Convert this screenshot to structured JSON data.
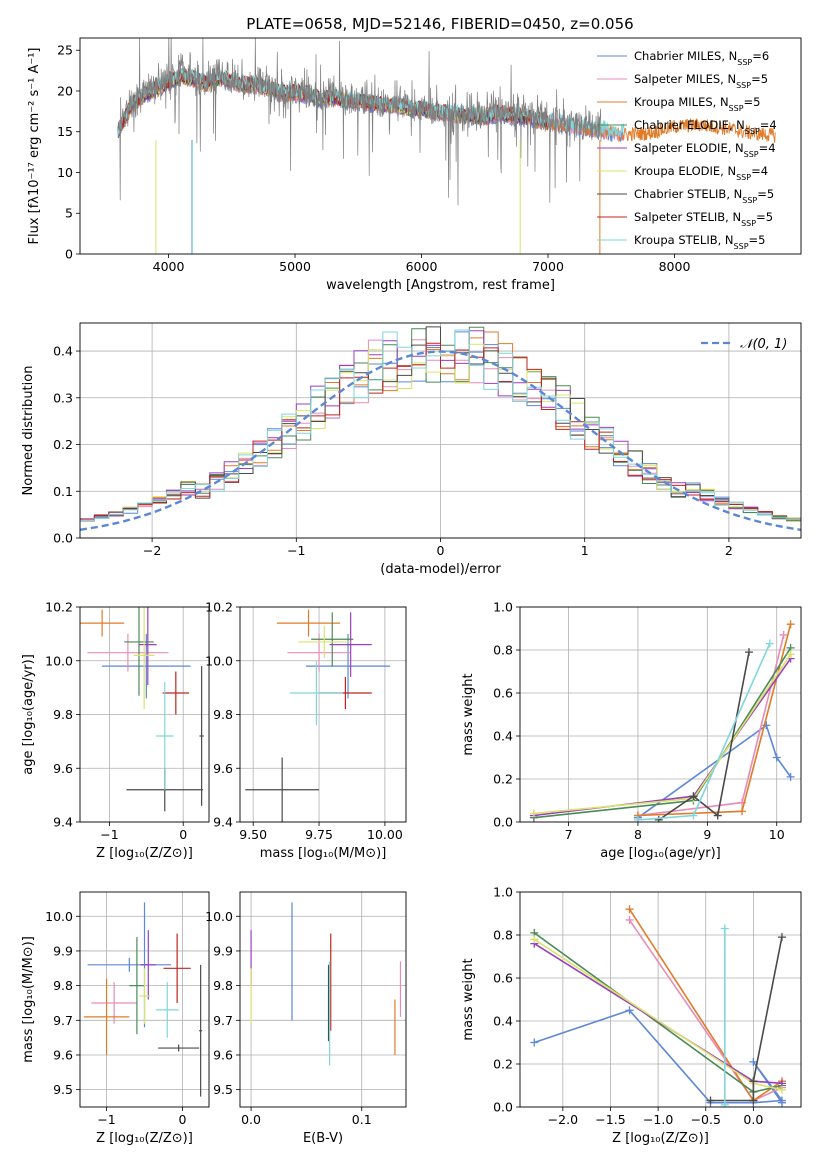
{
  "figure_title": "PLATE=0658, MJD=52146, FIBERID=0450, z=0.056",
  "colors": {
    "cmiles": "#5b87d6",
    "smiles": "#e88cb7",
    "kmiles": "#e07b28",
    "celodie": "#4a8a55",
    "selodie": "#9a3fbf",
    "kelodie": "#d9e36a",
    "cstelib": "#4a4a4a",
    "sstelib": "#c0241c",
    "kstelib": "#7fd6dc",
    "grid": "#b0b0b0",
    "normal_curve": "#5b87d6"
  },
  "chart_data": [
    {
      "type": "line",
      "title": "PLATE=0658, MJD=52146, FIBERID=0450, z=0.056",
      "xlabel": "wavelength [Angstrom, rest frame]",
      "ylabel": "Flux [fλ10⁻¹⁷ erg cm⁻² s⁻¹ A⁻¹]",
      "xlim": [
        3300,
        9000
      ],
      "ylim": [
        0,
        26.5
      ],
      "xticks": [
        4000,
        5000,
        6000,
        7000,
        8000
      ],
      "yticks": [
        0,
        5,
        10,
        15,
        20,
        25
      ],
      "grid": false,
      "legend_position": "top-right",
      "data_continuum": [
        [
          3600,
          15.5
        ],
        [
          3700,
          18.5
        ],
        [
          3800,
          20.0
        ],
        [
          3900,
          21.0
        ],
        [
          4000,
          21.5
        ],
        [
          4100,
          22.5
        ],
        [
          4200,
          22.0
        ],
        [
          4300,
          21.0
        ],
        [
          4400,
          22.0
        ],
        [
          4500,
          21.5
        ],
        [
          4600,
          21.0
        ],
        [
          4700,
          21.0
        ],
        [
          4800,
          20.5
        ],
        [
          4900,
          20.0
        ],
        [
          5000,
          20.0
        ],
        [
          5100,
          20.0
        ],
        [
          5200,
          19.3
        ],
        [
          5300,
          19.5
        ],
        [
          5400,
          19.0
        ],
        [
          5500,
          19.0
        ],
        [
          5600,
          18.8
        ],
        [
          5700,
          18.6
        ],
        [
          5800,
          18.5
        ],
        [
          5900,
          18.2
        ],
        [
          6000,
          18.0
        ],
        [
          6100,
          17.8
        ],
        [
          6200,
          17.6
        ],
        [
          6300,
          17.4
        ],
        [
          6400,
          17.5
        ],
        [
          6500,
          17.3
        ],
        [
          6600,
          17.5
        ],
        [
          6700,
          17.6
        ],
        [
          6800,
          17.4
        ],
        [
          6900,
          17.0
        ],
        [
          7000,
          16.6
        ],
        [
          7100,
          16.5
        ],
        [
          7200,
          16.0
        ],
        [
          7300,
          15.8
        ],
        [
          7400,
          15.3
        ]
      ],
      "model_continuum": [
        [
          3600,
          15.0
        ],
        [
          3700,
          18.0
        ],
        [
          3800,
          19.5
        ],
        [
          3900,
          20.2
        ],
        [
          4000,
          21.0
        ],
        [
          4100,
          21.8
        ],
        [
          4200,
          21.5
        ],
        [
          4300,
          20.8
        ],
        [
          4400,
          21.6
        ],
        [
          4500,
          21.2
        ],
        [
          4600,
          20.8
        ],
        [
          4700,
          20.7
        ],
        [
          4800,
          20.2
        ],
        [
          4900,
          19.8
        ],
        [
          5000,
          19.7
        ],
        [
          5100,
          19.6
        ],
        [
          5200,
          19.0
        ],
        [
          5300,
          19.2
        ],
        [
          5400,
          18.8
        ],
        [
          5500,
          18.7
        ],
        [
          5600,
          18.5
        ],
        [
          5700,
          18.3
        ],
        [
          5800,
          18.2
        ],
        [
          5900,
          17.9
        ],
        [
          6000,
          17.7
        ],
        [
          6100,
          17.5
        ],
        [
          6200,
          17.3
        ],
        [
          6300,
          17.1
        ],
        [
          6400,
          17.0
        ],
        [
          6500,
          16.8
        ],
        [
          6600,
          17.2
        ],
        [
          6700,
          17.0
        ],
        [
          6800,
          16.8
        ],
        [
          6900,
          16.5
        ],
        [
          7000,
          16.2
        ],
        [
          7100,
          16.0
        ],
        [
          7200,
          15.7
        ],
        [
          7300,
          15.5
        ],
        [
          7400,
          15.3
        ],
        [
          7500,
          15.0
        ],
        [
          7600,
          14.8
        ],
        [
          7800,
          15.0
        ],
        [
          8000,
          15.8
        ],
        [
          8200,
          16.0
        ],
        [
          8400,
          15.6
        ],
        [
          8600,
          15.0
        ],
        [
          8800,
          14.7
        ]
      ],
      "legend": [
        {
          "name": "Chabrier MILES, N",
          "sub": "SSP",
          "suffix": "=6",
          "color": "#5b87d6"
        },
        {
          "name": "Salpeter MILES, N",
          "sub": "SSP",
          "suffix": "=5",
          "color": "#e88cb7"
        },
        {
          "name": "Kroupa MILES, N",
          "sub": "SSP",
          "suffix": "=5",
          "color": "#e07b28"
        },
        {
          "name": "Chabrier ELODIE, N",
          "sub": "SSP",
          "suffix": "=4",
          "color": "#4a8a55"
        },
        {
          "name": "Salpeter ELODIE, N",
          "sub": "SSP",
          "suffix": "=4",
          "color": "#9a3fbf"
        },
        {
          "name": "Kroupa ELODIE, N",
          "sub": "SSP",
          "suffix": "=4",
          "color": "#d9e36a"
        },
        {
          "name": "Chabrier STELIB, N",
          "sub": "SSP",
          "suffix": "=5",
          "color": "#4a4a4a"
        },
        {
          "name": "Salpeter STELIB, N",
          "sub": "SSP",
          "suffix": "=5",
          "color": "#c0241c"
        },
        {
          "name": "Kroupa STELIB, N",
          "sub": "SSP",
          "suffix": "=5",
          "color": "#7fd6dc"
        }
      ]
    },
    {
      "type": "step",
      "xlabel": "(data-model)/error",
      "ylabel": "Normed distribution",
      "xlim": [
        -2.5,
        2.5
      ],
      "ylim": [
        0,
        0.46
      ],
      "xticks": [
        -2,
        -1,
        0,
        1,
        2
      ],
      "yticks": [
        0.0,
        0.1,
        0.2,
        0.3,
        0.4
      ],
      "grid": true,
      "legend_position": "top-right",
      "normal_label": "𝒩(0, 1)"
    },
    {
      "type": "scatter",
      "xlabel": "Z [log₁₀(Z/Z⊙)]",
      "ylabel": "age  [log₁₀(age/yr)]",
      "xlim": [
        -1.4,
        0.35
      ],
      "ylim": [
        9.4,
        10.2
      ],
      "xticks": [
        -1,
        0
      ],
      "yticks": [
        9.4,
        9.6,
        9.8,
        10.0,
        10.2
      ],
      "grid": true,
      "points": [
        {
          "x": -0.5,
          "xerr": 0.6,
          "y": 9.98,
          "yerr": 0.12,
          "color": "#5b87d6"
        },
        {
          "x": -0.75,
          "xerr": 0.55,
          "y": 10.03,
          "yerr": 0.07,
          "color": "#e88cb7"
        },
        {
          "x": -1.1,
          "xerr": 0.3,
          "y": 10.14,
          "yerr": 0.05,
          "color": "#e07b28"
        },
        {
          "x": -0.6,
          "xerr": 0.2,
          "y": 10.07,
          "yerr": 0.2,
          "color": "#4a8a55"
        },
        {
          "x": -0.48,
          "xerr": 0.12,
          "y": 10.06,
          "yerr": 0.15,
          "color": "#9a3fbf"
        },
        {
          "x": -0.53,
          "xerr": 0.14,
          "y": 10.02,
          "yerr": 0.2,
          "color": "#d9e36a"
        },
        {
          "x": -0.25,
          "xerr": 0.52,
          "y": 9.52,
          "yerr": 0.08,
          "color": "#4a4a4a"
        },
        {
          "x": 0.25,
          "xerr": 0.03,
          "y": 9.72,
          "yerr": 0.26,
          "color": "#4a4a4a"
        },
        {
          "x": -0.1,
          "xerr": 0.18,
          "y": 9.88,
          "yerr": 0.08,
          "color": "#c0241c"
        },
        {
          "x": -0.25,
          "xerr": 0.12,
          "y": 9.72,
          "yerr": 0.2,
          "color": "#7fd6dc"
        }
      ]
    },
    {
      "type": "scatter",
      "xlabel": "mass [log₁₀(M/M⊙)]",
      "ylabel": "",
      "xlim": [
        9.45,
        10.08
      ],
      "ylim": [
        9.4,
        10.2
      ],
      "xticks": [
        9.5,
        9.75,
        10.0
      ],
      "yticks": [
        9.4,
        9.6,
        9.8,
        10.0,
        10.2
      ],
      "grid": true,
      "points": [
        {
          "x": 9.86,
          "xerr": 0.16,
          "y": 9.98,
          "yerr": 0.12,
          "color": "#5b87d6"
        },
        {
          "x": 9.75,
          "xerr": 0.12,
          "y": 10.03,
          "yerr": 0.07,
          "color": "#e88cb7"
        },
        {
          "x": 9.71,
          "xerr": 0.12,
          "y": 10.14,
          "yerr": 0.05,
          "color": "#e07b28"
        },
        {
          "x": 9.8,
          "xerr": 0.08,
          "y": 10.08,
          "yerr": 0.1,
          "color": "#4a8a55"
        },
        {
          "x": 9.87,
          "xerr": 0.08,
          "y": 10.06,
          "yerr": 0.12,
          "color": "#9a3fbf"
        },
        {
          "x": 9.77,
          "xerr": 0.1,
          "y": 10.07,
          "yerr": 0.06,
          "color": "#d9e36a"
        },
        {
          "x": 9.61,
          "xerr": 0.14,
          "y": 9.52,
          "yerr": 0.12,
          "color": "#4a4a4a"
        },
        {
          "x": 9.85,
          "xerr": 0.1,
          "y": 9.88,
          "yerr": 0.06,
          "color": "#c0241c"
        },
        {
          "x": 9.74,
          "xerr": 0.1,
          "y": 9.88,
          "yerr": 0.12,
          "color": "#7fd6dc"
        }
      ]
    },
    {
      "type": "line",
      "xlabel": "age  [log₁₀(age/yr)]",
      "ylabel": "mass weight",
      "xlim": [
        6.3,
        10.35
      ],
      "ylim": [
        0,
        1.0
      ],
      "xticks": [
        7,
        8,
        9,
        10
      ],
      "yticks": [
        0.0,
        0.2,
        0.4,
        0.6,
        0.8,
        1.0
      ],
      "grid": true,
      "series": [
        {
          "color": "#5b87d6",
          "x": [
            8.0,
            9.85,
            10.0,
            10.2
          ],
          "y": [
            0.02,
            0.45,
            0.3,
            0.21
          ]
        },
        {
          "color": "#e88cb7",
          "x": [
            8.0,
            9.5,
            10.1
          ],
          "y": [
            0.03,
            0.09,
            0.87
          ]
        },
        {
          "color": "#e07b28",
          "x": [
            8.0,
            9.5,
            10.2
          ],
          "y": [
            0.03,
            0.05,
            0.92
          ]
        },
        {
          "color": "#4a8a55",
          "x": [
            6.5,
            8.8,
            10.2
          ],
          "y": [
            0.02,
            0.1,
            0.81
          ]
        },
        {
          "color": "#9a3fbf",
          "x": [
            6.5,
            8.8,
            10.2
          ],
          "y": [
            0.03,
            0.12,
            0.76
          ]
        },
        {
          "color": "#d9e36a",
          "x": [
            6.5,
            8.8,
            10.2
          ],
          "y": [
            0.04,
            0.11,
            0.78
          ]
        },
        {
          "color": "#4a4a4a",
          "x": [
            8.3,
            8.8,
            9.15,
            9.6
          ],
          "y": [
            0.01,
            0.12,
            0.03,
            0.79
          ]
        },
        {
          "color": "#7fd6dc",
          "x": [
            8.0,
            8.8,
            9.9
          ],
          "y": [
            0.01,
            0.03,
            0.83
          ]
        }
      ]
    },
    {
      "type": "scatter",
      "xlabel": "Z [log₁₀(Z/Z⊙)]",
      "ylabel": "mass [log₁₀(M/M⊙)]",
      "xlim": [
        -1.35,
        0.35
      ],
      "ylim": [
        9.45,
        10.07
      ],
      "xticks": [
        -1,
        0
      ],
      "yticks": [
        9.5,
        9.6,
        9.7,
        9.8,
        9.9,
        10.0
      ],
      "grid": true,
      "points": [
        {
          "x": -0.7,
          "xerr": 0.55,
          "y": 9.86,
          "yerr": 0.02,
          "color": "#5b87d6"
        },
        {
          "x": -0.5,
          "xerr": 0.05,
          "y": 9.86,
          "yerr": 0.18,
          "color": "#5b87d6"
        },
        {
          "x": -0.9,
          "xerr": 0.3,
          "y": 9.75,
          "yerr": 0.06,
          "color": "#e88cb7"
        },
        {
          "x": -1.0,
          "xerr": 0.3,
          "y": 9.71,
          "yerr": 0.11,
          "color": "#e07b28"
        },
        {
          "x": -0.6,
          "xerr": 0.1,
          "y": 9.8,
          "yerr": 0.14,
          "color": "#4a8a55"
        },
        {
          "x": -0.45,
          "xerr": 0.1,
          "y": 9.86,
          "yerr": 0.1,
          "color": "#9a3fbf"
        },
        {
          "x": -0.5,
          "xerr": 0.07,
          "y": 9.77,
          "yerr": 0.08,
          "color": "#d9e36a"
        },
        {
          "x": -0.05,
          "xerr": 0.27,
          "y": 9.62,
          "yerr": 0.01,
          "color": "#4a4a4a"
        },
        {
          "x": 0.24,
          "xerr": 0.02,
          "y": 9.67,
          "yerr": 0.19,
          "color": "#4a4a4a"
        },
        {
          "x": -0.07,
          "xerr": 0.18,
          "y": 9.85,
          "yerr": 0.1,
          "color": "#c0241c"
        },
        {
          "x": -0.2,
          "xerr": 0.15,
          "y": 9.73,
          "yerr": 0.08,
          "color": "#7fd6dc"
        }
      ]
    },
    {
      "type": "scatter",
      "xlabel": "E(B-V)",
      "ylabel": "",
      "xlim": [
        -0.01,
        0.14
      ],
      "ylim": [
        9.45,
        10.07
      ],
      "xticks": [
        0.0,
        0.1
      ],
      "yticks": [
        9.5,
        9.6,
        9.7,
        9.8,
        9.9,
        10.0
      ],
      "grid": true,
      "points": [
        {
          "x": 0.037,
          "y": 9.87,
          "yerr": 0.17,
          "color": "#5b87d6"
        },
        {
          "x": 0.0,
          "y": 9.88,
          "yerr": 0.08,
          "color": "#9a3fbf"
        },
        {
          "x": 0.0,
          "y": 9.77,
          "yerr": 0.08,
          "color": "#d9e36a"
        },
        {
          "x": 0.07,
          "y": 9.75,
          "yerr": 0.11,
          "color": "#4a4a4a"
        },
        {
          "x": 0.072,
          "y": 9.81,
          "yerr": 0.14,
          "color": "#c0241c"
        },
        {
          "x": 0.071,
          "y": 9.72,
          "yerr": 0.15,
          "color": "#7fd6dc"
        },
        {
          "x": 0.13,
          "y": 9.68,
          "yerr": 0.08,
          "color": "#e07b28"
        },
        {
          "x": 0.135,
          "y": 9.79,
          "yerr": 0.08,
          "color": "#e88cb7"
        }
      ]
    },
    {
      "type": "line",
      "xlabel": "Z [log₁₀(Z/Z⊙)]",
      "ylabel": "mass weight",
      "xlim": [
        -2.45,
        0.5
      ],
      "ylim": [
        0,
        1.0
      ],
      "xticks": [
        -2.0,
        -1.5,
        -1.0,
        -0.5,
        0.0
      ],
      "yticks": [
        0.0,
        0.2,
        0.4,
        0.6,
        0.8,
        1.0
      ],
      "grid": true,
      "series": [
        {
          "color": "#5b87d6",
          "x": [
            -2.3,
            -1.3,
            -0.45,
            0.0,
            0.3,
            0.0,
            0.3
          ],
          "y": [
            0.3,
            0.45,
            0.02,
            0.02,
            0.03,
            0.21,
            0.02
          ]
        },
        {
          "color": "#e88cb7",
          "x": [
            -1.3,
            0.0,
            0.3
          ],
          "y": [
            0.87,
            0.03,
            0.09
          ]
        },
        {
          "color": "#e07b28",
          "x": [
            -1.3,
            0.0,
            0.3
          ],
          "y": [
            0.92,
            0.03,
            0.12
          ]
        },
        {
          "color": "#4a8a55",
          "x": [
            -2.3,
            0.0,
            0.3
          ],
          "y": [
            0.81,
            0.07,
            0.1
          ]
        },
        {
          "color": "#9a3fbf",
          "x": [
            -2.3,
            0.0,
            0.3
          ],
          "y": [
            0.76,
            0.12,
            0.11
          ]
        },
        {
          "color": "#d9e36a",
          "x": [
            -2.3,
            0.0,
            0.3
          ],
          "y": [
            0.78,
            0.11,
            0.08
          ]
        },
        {
          "color": "#4a4a4a",
          "x": [
            -0.45,
            0.0,
            0.0,
            0.3
          ],
          "y": [
            0.03,
            0.03,
            0.12,
            0.79
          ]
        },
        {
          "color": "#7fd6dc",
          "x": [
            -0.3,
            -0.3
          ],
          "y": [
            0.01,
            0.83
          ]
        }
      ]
    }
  ]
}
